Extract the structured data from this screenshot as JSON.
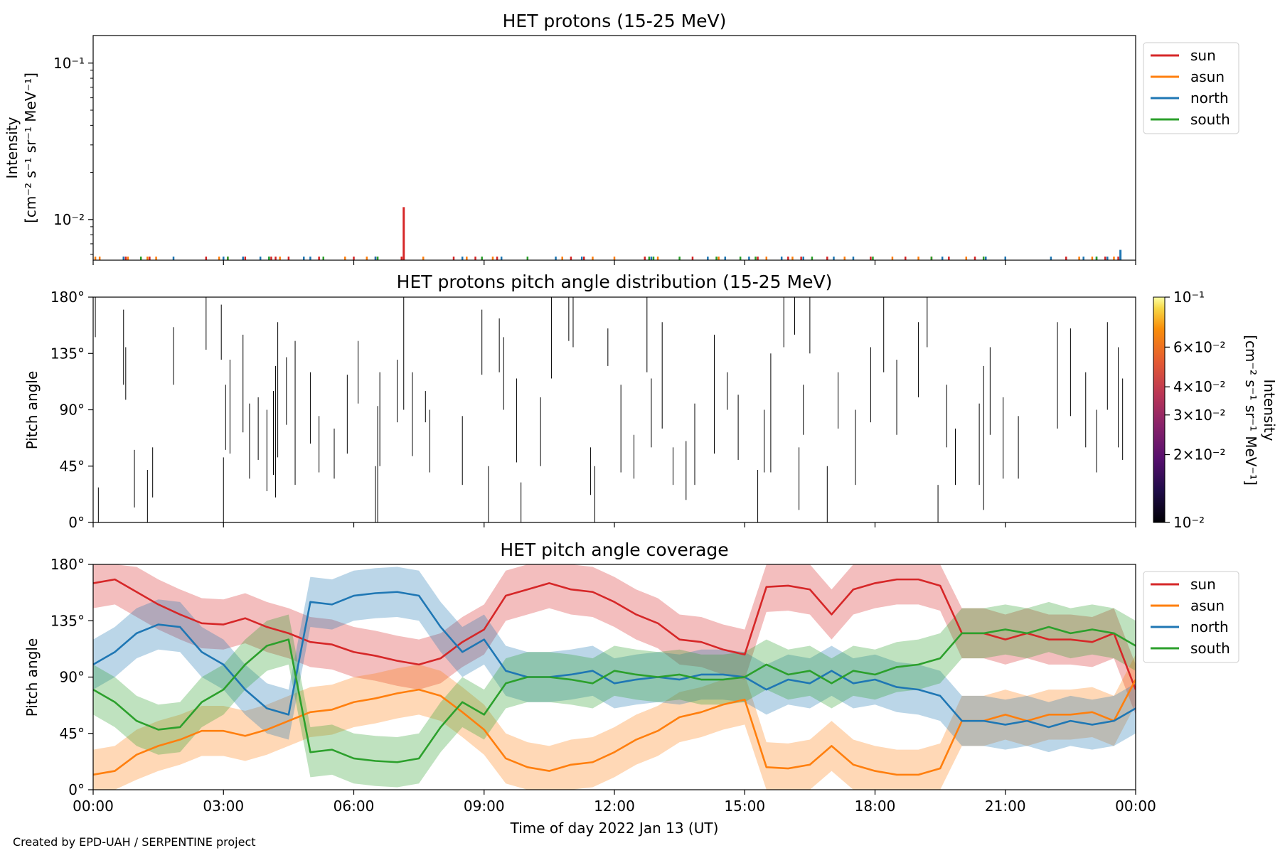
{
  "credit": "Created by EPD-UAH / SERPENTINE project",
  "xaxis": {
    "label": "Time of day 2022 Jan 13 (UT)",
    "ticks": [
      "00:00",
      "03:00",
      "06:00",
      "09:00",
      "12:00",
      "15:00",
      "18:00",
      "21:00",
      "00:00"
    ],
    "range_hours": [
      0,
      24
    ]
  },
  "colors": {
    "sun": "#d62728",
    "asun": "#ff7f0e",
    "north": "#1f77b4",
    "south": "#2ca02c"
  },
  "chart_data": [
    {
      "type": "line",
      "title": "HET protons (15-25 MeV)",
      "ylabel": [
        "Intensity",
        "[cm⁻² s⁻¹ sr⁻¹ MeV⁻¹]"
      ],
      "yscale": "log",
      "ylim": [
        0.0055,
        0.15
      ],
      "yticks": [
        "10⁻¹",
        "10⁻²"
      ],
      "legend": {
        "placement": "outside-right-top",
        "entries": [
          "sun",
          "asun",
          "north",
          "south"
        ]
      },
      "series": [
        {
          "name": "sun",
          "spike_hours": [
            0.7,
            0.75,
            1.3,
            2.6,
            3.1,
            3.5,
            4.1,
            4.2,
            4.5,
            5.2,
            6.0,
            6.5,
            7.1,
            8.3,
            8.8,
            9.3,
            11.0,
            11.3,
            12.7,
            13.8,
            15.3,
            16.0,
            16.3,
            16.9,
            17.9,
            18.7,
            19.3,
            19.7,
            20.3,
            21.0,
            22.4,
            23.3,
            23.6
          ],
          "peak": {
            "x": 7.15,
            "value": 0.012
          }
        },
        {
          "name": "asun",
          "spike_hours": [
            0.05,
            0.15,
            0.8,
            1.25,
            1.45,
            2.9,
            4.3,
            5.8,
            6.3,
            7.6,
            8.6,
            9.2,
            10.8,
            11.5,
            12.0,
            13.0,
            14.4,
            15.5,
            16.1,
            17.3,
            18.4,
            19.0,
            20.1,
            20.5,
            22.7,
            23.0,
            23.5
          ],
          "peak": null
        },
        {
          "name": "north",
          "spike_hours": [
            0.7,
            1.85,
            3.0,
            3.45,
            3.85,
            4.05,
            4.85,
            5.0,
            6.5,
            8.5,
            9.4,
            10.65,
            11.25,
            12.85,
            14.15,
            14.55,
            15.1,
            15.85,
            16.35,
            17.05,
            17.5,
            19.55,
            20.55,
            21.0,
            22.05,
            22.8,
            23.1,
            23.35,
            23.65
          ],
          "peak": {
            "x": 23.65,
            "value": 0.0064
          }
        },
        {
          "name": "south",
          "spike_hours": [
            1.1,
            3.1,
            4.05,
            5.3,
            6.55,
            8.95,
            10.0,
            12.8,
            12.9,
            13.5,
            14.35,
            14.9,
            15.25,
            16.55,
            17.95,
            19.3,
            20.5,
            23.1
          ],
          "peak": null
        }
      ]
    },
    {
      "type": "heatmap",
      "title": "HET protons pitch angle distribution (15-25 MeV)",
      "ylabel": "Pitch angle",
      "ylim": [
        0,
        180
      ],
      "yticks": [
        "0°",
        "45°",
        "90°",
        "135°",
        "180°"
      ],
      "colorbar": {
        "label": [
          "Intensity",
          "[cm⁻² s⁻¹ sr⁻¹ MeV⁻¹]"
        ],
        "scale": "log",
        "range": [
          0.01,
          0.1
        ],
        "ticks": [
          {
            "value": 0.1,
            "label": "10⁻¹"
          },
          {
            "value": 0.06,
            "label": "6×10⁻²"
          },
          {
            "value": 0.04,
            "label": "4×10⁻²"
          },
          {
            "value": 0.03,
            "label": "3×10⁻²"
          },
          {
            "value": 0.02,
            "label": "2×10⁻²"
          },
          {
            "value": 0.01,
            "label": "10⁻²"
          }
        ]
      },
      "segments": [
        [
          0.05,
          148,
          180
        ],
        [
          0.12,
          0,
          28
        ],
        [
          0.7,
          110,
          170
        ],
        [
          0.75,
          98,
          140
        ],
        [
          0.95,
          12,
          58
        ],
        [
          1.25,
          0,
          42
        ],
        [
          1.37,
          20,
          60
        ],
        [
          1.85,
          110,
          156
        ],
        [
          2.6,
          138,
          180
        ],
        [
          2.95,
          130,
          174
        ],
        [
          3.0,
          0,
          52
        ],
        [
          3.05,
          58,
          110
        ],
        [
          3.15,
          55,
          130
        ],
        [
          3.45,
          72,
          150
        ],
        [
          3.6,
          35,
          95
        ],
        [
          3.8,
          50,
          100
        ],
        [
          4.0,
          25,
          90
        ],
        [
          4.15,
          38,
          105
        ],
        [
          4.2,
          20,
          125
        ],
        [
          4.25,
          52,
          160
        ],
        [
          4.45,
          78,
          132
        ],
        [
          4.65,
          30,
          145
        ],
        [
          5.0,
          63,
          120
        ],
        [
          5.2,
          40,
          85
        ],
        [
          5.55,
          35,
          75
        ],
        [
          5.85,
          55,
          118
        ],
        [
          6.1,
          95,
          145
        ],
        [
          6.5,
          0,
          45
        ],
        [
          6.55,
          0,
          93
        ],
        [
          6.6,
          45,
          120
        ],
        [
          7.0,
          80,
          130
        ],
        [
          7.15,
          90,
          180
        ],
        [
          7.35,
          53,
          120
        ],
        [
          7.65,
          80,
          105
        ],
        [
          7.75,
          40,
          90
        ],
        [
          8.5,
          30,
          85
        ],
        [
          8.95,
          118,
          170
        ],
        [
          9.1,
          0,
          45
        ],
        [
          9.35,
          120,
          163
        ],
        [
          9.45,
          90,
          148
        ],
        [
          9.75,
          48,
          115
        ],
        [
          9.85,
          0,
          32
        ],
        [
          10.3,
          45,
          100
        ],
        [
          10.55,
          115,
          180
        ],
        [
          10.95,
          145,
          180
        ],
        [
          11.05,
          140,
          180
        ],
        [
          11.45,
          22,
          60
        ],
        [
          11.55,
          0,
          45
        ],
        [
          11.85,
          125,
          155
        ],
        [
          12.15,
          40,
          110
        ],
        [
          12.45,
          35,
          70
        ],
        [
          12.75,
          120,
          180
        ],
        [
          12.85,
          60,
          115
        ],
        [
          13.1,
          75,
          160
        ],
        [
          13.35,
          30,
          60
        ],
        [
          13.65,
          18,
          65
        ],
        [
          13.85,
          30,
          95
        ],
        [
          14.3,
          55,
          150
        ],
        [
          14.6,
          90,
          120
        ],
        [
          14.85,
          50,
          102
        ],
        [
          15.3,
          0,
          42
        ],
        [
          15.45,
          40,
          90
        ],
        [
          15.6,
          40,
          135
        ],
        [
          15.9,
          140,
          180
        ],
        [
          16.15,
          150,
          180
        ],
        [
          16.25,
          10,
          60
        ],
        [
          16.35,
          70,
          110
        ],
        [
          16.5,
          135,
          180
        ],
        [
          16.9,
          0,
          45
        ],
        [
          17.15,
          75,
          120
        ],
        [
          17.55,
          30,
          90
        ],
        [
          17.9,
          80,
          140
        ],
        [
          18.2,
          120,
          180
        ],
        [
          18.5,
          70,
          130
        ],
        [
          19.0,
          100,
          160
        ],
        [
          19.2,
          140,
          180
        ],
        [
          19.45,
          0,
          30
        ],
        [
          19.65,
          60,
          110
        ],
        [
          19.85,
          30,
          75
        ],
        [
          20.4,
          30,
          95
        ],
        [
          20.5,
          10,
          125
        ],
        [
          20.65,
          70,
          140
        ],
        [
          20.95,
          35,
          100
        ],
        [
          21.3,
          35,
          85
        ],
        [
          22.2,
          75,
          160
        ],
        [
          22.5,
          85,
          155
        ],
        [
          22.85,
          60,
          120
        ],
        [
          23.1,
          40,
          90
        ],
        [
          23.35,
          90,
          160
        ],
        [
          23.6,
          60,
          140
        ],
        [
          23.7,
          50,
          115
        ]
      ]
    },
    {
      "type": "area",
      "title": "HET pitch angle coverage",
      "ylabel": "Pitch angle",
      "ylim": [
        0,
        180
      ],
      "yticks": [
        "0°",
        "45°",
        "90°",
        "135°",
        "180°"
      ],
      "band_halfwidth_deg": 20,
      "legend": {
        "placement": "outside-right-top",
        "entries": [
          "sun",
          "asun",
          "north",
          "south"
        ]
      },
      "series": [
        {
          "name": "sun",
          "x": [
            0,
            0.5,
            1.0,
            1.5,
            2.0,
            2.5,
            3.0,
            3.5,
            4.0,
            4.5,
            5.0,
            5.5,
            6.0,
            6.5,
            7.0,
            7.5,
            8.0,
            8.5,
            9.0,
            9.5,
            10.0,
            10.5,
            11.0,
            11.5,
            12.0,
            12.5,
            13.0,
            13.5,
            14.0,
            14.5,
            15.0,
            15.5,
            16.0,
            16.5,
            17.0,
            17.5,
            18.0,
            18.5,
            19.0,
            19.5,
            20.0,
            20.5,
            21.0,
            21.5,
            22.0,
            22.5,
            23.0,
            23.5,
            24.0
          ],
          "y": [
            165,
            168,
            158,
            148,
            140,
            133,
            132,
            137,
            130,
            125,
            118,
            116,
            110,
            107,
            103,
            100,
            105,
            118,
            128,
            155,
            160,
            165,
            160,
            158,
            150,
            140,
            133,
            120,
            118,
            112,
            108,
            162,
            163,
            160,
            140,
            160,
            165,
            168,
            168,
            163,
            125,
            125,
            120,
            125,
            120,
            120,
            118,
            125,
            80
          ]
        },
        {
          "name": "asun",
          "x": [
            0,
            0.5,
            1.0,
            1.5,
            2.0,
            2.5,
            3.0,
            3.5,
            4.0,
            4.5,
            5.0,
            5.5,
            6.0,
            6.5,
            7.0,
            7.5,
            8.0,
            8.5,
            9.0,
            9.5,
            10.0,
            10.5,
            11.0,
            11.5,
            12.0,
            12.5,
            13.0,
            13.5,
            14.0,
            14.5,
            15.0,
            15.5,
            16.0,
            16.5,
            17.0,
            17.5,
            18.0,
            18.5,
            19.0,
            19.5,
            20.0,
            20.5,
            21.0,
            21.5,
            22.0,
            22.5,
            23.0,
            23.5,
            24.0
          ],
          "y": [
            12,
            15,
            28,
            35,
            40,
            47,
            47,
            43,
            48,
            55,
            62,
            64,
            70,
            73,
            77,
            80,
            75,
            62,
            48,
            25,
            18,
            15,
            20,
            22,
            30,
            40,
            47,
            58,
            62,
            68,
            72,
            18,
            17,
            20,
            35,
            20,
            15,
            12,
            12,
            17,
            55,
            55,
            60,
            55,
            60,
            60,
            62,
            55,
            88
          ]
        },
        {
          "name": "north",
          "x": [
            0,
            0.5,
            1.0,
            1.5,
            2.0,
            2.5,
            3.0,
            3.5,
            4.0,
            4.5,
            5.0,
            5.5,
            6.0,
            6.5,
            7.0,
            7.5,
            8.0,
            8.5,
            9.0,
            9.5,
            10.0,
            10.5,
            11.0,
            11.5,
            12.0,
            12.5,
            13.0,
            13.5,
            14.0,
            14.5,
            15.0,
            15.5,
            16.0,
            16.5,
            17.0,
            17.5,
            18.0,
            18.5,
            19.0,
            19.5,
            20.0,
            20.5,
            21.0,
            21.5,
            22.0,
            22.5,
            23.0,
            23.5,
            24.0
          ],
          "y": [
            100,
            110,
            125,
            132,
            130,
            110,
            100,
            80,
            65,
            60,
            150,
            148,
            155,
            157,
            158,
            155,
            130,
            110,
            120,
            95,
            90,
            90,
            92,
            95,
            85,
            88,
            90,
            88,
            92,
            92,
            90,
            80,
            88,
            85,
            95,
            85,
            88,
            82,
            80,
            75,
            55,
            55,
            52,
            55,
            50,
            55,
            52,
            55,
            65
          ]
        },
        {
          "name": "south",
          "x": [
            0,
            0.5,
            1.0,
            1.5,
            2.0,
            2.5,
            3.0,
            3.5,
            4.0,
            4.5,
            5.0,
            5.5,
            6.0,
            6.5,
            7.0,
            7.5,
            8.0,
            8.5,
            9.0,
            9.5,
            10.0,
            10.5,
            11.0,
            11.5,
            12.0,
            12.5,
            13.0,
            13.5,
            14.0,
            14.5,
            15.0,
            15.5,
            16.0,
            16.5,
            17.0,
            17.5,
            18.0,
            18.5,
            19.0,
            19.5,
            20.0,
            20.5,
            21.0,
            21.5,
            22.0,
            22.5,
            23.0,
            23.5,
            24.0
          ],
          "y": [
            80,
            70,
            55,
            48,
            50,
            70,
            80,
            100,
            115,
            120,
            30,
            32,
            25,
            23,
            22,
            25,
            50,
            70,
            60,
            85,
            90,
            90,
            88,
            85,
            95,
            92,
            90,
            92,
            88,
            88,
            90,
            100,
            92,
            95,
            85,
            95,
            92,
            98,
            100,
            105,
            125,
            125,
            128,
            125,
            130,
            125,
            128,
            125,
            115
          ]
        }
      ]
    }
  ]
}
